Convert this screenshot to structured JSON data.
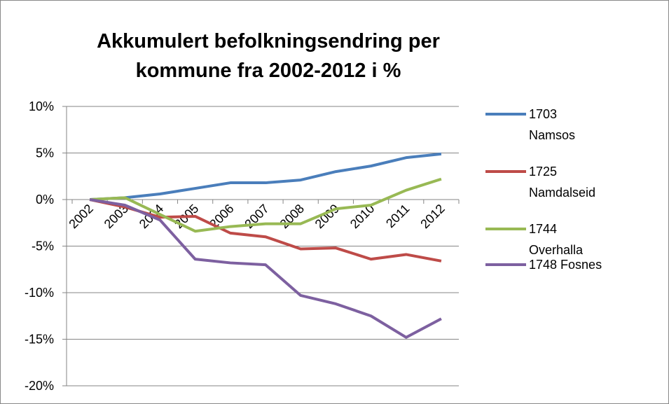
{
  "chart_data": {
    "type": "line",
    "title": "Akkumulert befolkningsendring per kommune fra 2002-2012 i %",
    "categories": [
      "2002",
      "2003",
      "2004",
      "2005",
      "2006",
      "2007",
      "2008",
      "2009",
      "2010",
      "2011",
      "2012"
    ],
    "ylim": [
      -20,
      10
    ],
    "yticks": [
      {
        "value": -20,
        "label": "-20%"
      },
      {
        "value": -15,
        "label": "-15%"
      },
      {
        "value": -10,
        "label": "-10%"
      },
      {
        "value": -5,
        "label": "-5%"
      },
      {
        "value": 0,
        "label": "0%"
      },
      {
        "value": 5,
        "label": "5%"
      },
      {
        "value": 10,
        "label": "10%"
      }
    ],
    "grid": true,
    "legend": "right",
    "series": [
      {
        "name": "1703 Namsos",
        "color": "#4a7ebb",
        "values": [
          0,
          0.2,
          0.6,
          1.2,
          1.8,
          1.8,
          2.1,
          3.0,
          3.6,
          4.5,
          4.9
        ]
      },
      {
        "name": "1725 Namdalseid",
        "color": "#be4b48",
        "values": [
          0,
          -0.8,
          -1.9,
          -1.8,
          -3.6,
          -4.0,
          -5.3,
          -5.2,
          -6.4,
          -5.9,
          -6.6
        ]
      },
      {
        "name": "1744 Overhalla",
        "color": "#98b954",
        "values": [
          0,
          0.2,
          -1.6,
          -3.4,
          -2.9,
          -2.6,
          -2.6,
          -1.0,
          -0.6,
          1.0,
          2.2
        ]
      },
      {
        "name": "1748 Fosnes",
        "color": "#7d60a0",
        "values": [
          0,
          -0.6,
          -2.2,
          -6.4,
          -6.8,
          -7.0,
          -10.3,
          -11.2,
          -12.5,
          -14.8,
          -12.8
        ]
      }
    ]
  }
}
